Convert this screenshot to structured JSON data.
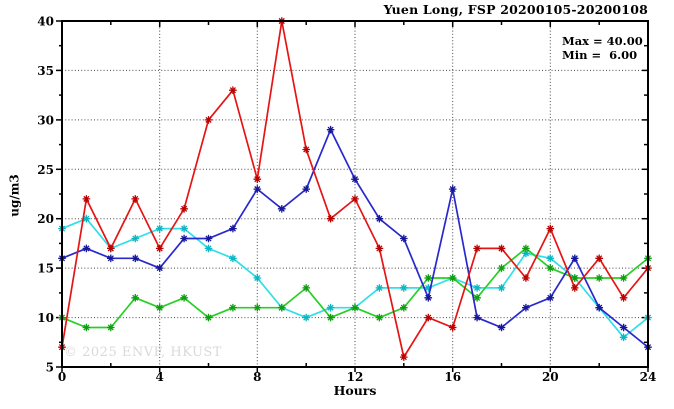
{
  "header": {
    "title": "Yuen Long, FSP 20200105-20200108"
  },
  "annotation": {
    "max_label": "Max = 40.00",
    "min_label": "Min =  6.00"
  },
  "watermark": "© 2025 ENVF, HKUST",
  "chart_data": {
    "type": "line",
    "title": "Yuen Long, FSP 20200105-20200108",
    "xlabel": "Hours",
    "ylabel": "ug/m3",
    "xlim": [
      0,
      24
    ],
    "ylim": [
      5,
      40
    ],
    "x_major_ticks": [
      0,
      4,
      8,
      12,
      16,
      20,
      24
    ],
    "x_minor_ticks": [
      2,
      6,
      10,
      14,
      18,
      22
    ],
    "y_major_ticks": [
      5,
      10,
      15,
      20,
      25,
      30,
      35,
      40
    ],
    "y_minor_ticks": [
      7.5,
      12.5,
      17.5,
      22.5,
      27.5,
      32.5,
      37.5
    ],
    "grid": "dotted",
    "legend": "none",
    "stats": {
      "max": 40.0,
      "min": 6.0
    },
    "x": [
      0,
      1,
      2,
      3,
      4,
      5,
      6,
      7,
      8,
      9,
      10,
      11,
      12,
      13,
      14,
      15,
      16,
      17,
      18,
      19,
      20,
      21,
      22,
      23,
      24
    ],
    "series": [
      {
        "name": "cyan-series",
        "color": "#30dfe8",
        "marker_color": "#0cb6c2",
        "values": [
          19,
          20,
          17,
          18,
          19,
          19,
          17,
          16,
          14,
          11,
          10,
          11,
          11,
          13,
          13,
          13,
          14,
          13,
          13,
          16.5,
          16,
          14,
          11,
          8,
          10
        ]
      },
      {
        "name": "green-series",
        "color": "#28cf28",
        "marker_color": "#0f9e0f",
        "values": [
          10,
          9,
          9,
          12,
          11,
          12,
          10,
          11,
          11,
          11,
          13,
          10,
          11,
          10,
          11,
          14,
          14,
          12,
          15,
          17,
          15,
          14,
          14,
          14,
          16
        ]
      },
      {
        "name": "blue-series",
        "color": "#2828cd",
        "marker_color": "#16169a",
        "values": [
          16,
          17,
          16,
          16,
          15,
          18,
          18,
          19,
          23,
          21,
          23,
          29,
          24,
          20,
          18,
          12,
          23,
          10,
          9,
          11,
          12,
          16,
          11,
          9,
          7
        ]
      },
      {
        "name": "red-series",
        "color": "#e61414",
        "marker_color": "#bb0000",
        "values": [
          7,
          22,
          17,
          22,
          17,
          21,
          30,
          33,
          24,
          40,
          27,
          20,
          22,
          17,
          6,
          10,
          9,
          17,
          17,
          14,
          19,
          13,
          16,
          12,
          15
        ]
      }
    ]
  }
}
